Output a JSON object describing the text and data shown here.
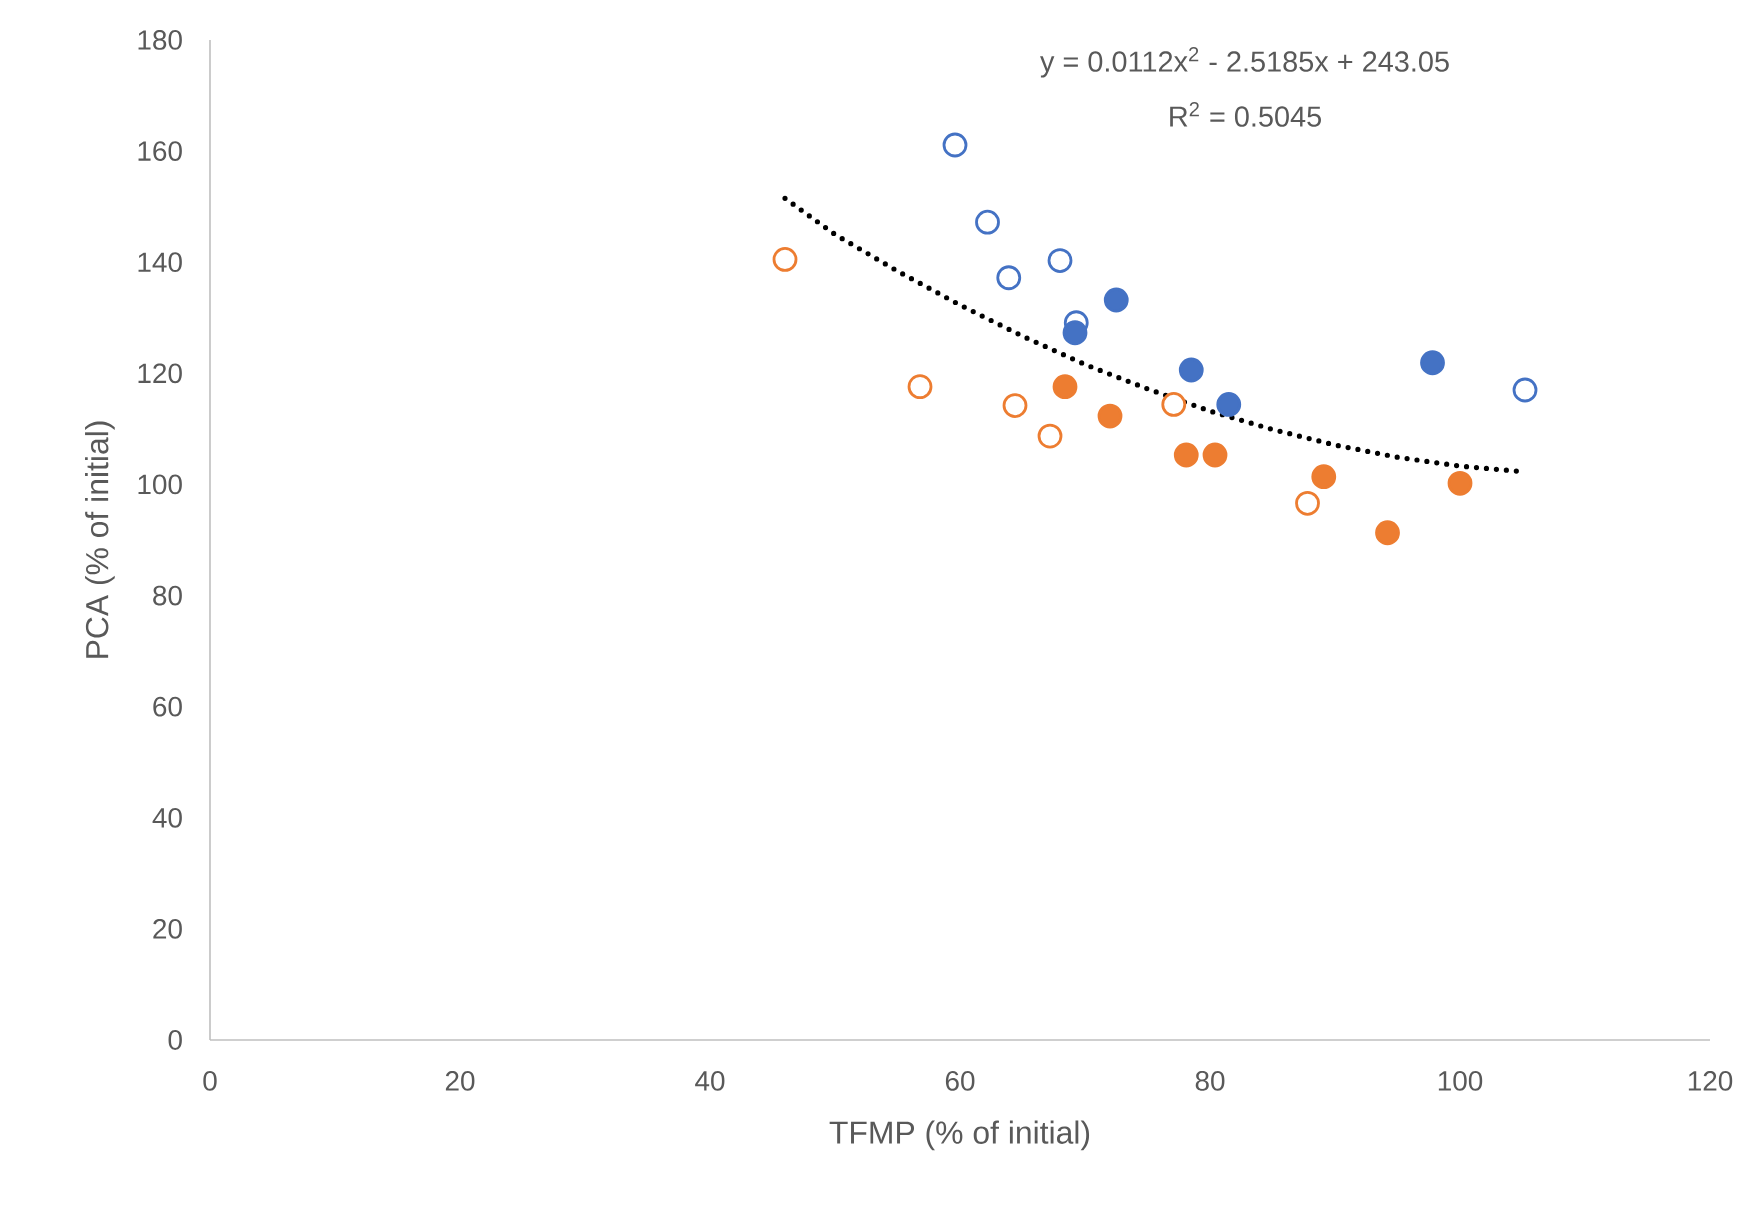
{
  "chart_data": {
    "type": "scatter",
    "xlabel": "TFMP (% of initial)",
    "ylabel": "PCA (% of initial)",
    "annotations": [
      "y = 0.0112x$^{2}$ - 2.5185x + 243.05",
      "R$^{2}$ = 0.5045"
    ],
    "xlim": [
      0,
      120
    ],
    "ylim": [
      0,
      180
    ],
    "xticks": [
      0,
      20,
      40,
      60,
      80,
      100,
      120
    ],
    "yticks": [
      0,
      20,
      40,
      60,
      80,
      100,
      120,
      140,
      160,
      180
    ],
    "marker": "circle",
    "series": [
      {
        "color": "#4472c4",
        "x": [
          59.6,
          62.2,
          63.9,
          68.0,
          69.3,
          105.2
        ],
        "values": [
          161.1,
          147.2,
          137.2,
          140.3,
          129.1,
          117.0
        ]
      },
      {
        "color": "#4472c4",
        "x": [
          69.2,
          72.5,
          78.5,
          81.5,
          97.8
        ],
        "values": [
          127.3,
          133.2,
          120.6,
          114.4,
          121.9
        ]
      },
      {
        "color": "#ed7d31",
        "x": [
          46.0,
          56.8,
          64.4,
          67.2,
          77.1,
          87.8
        ],
        "values": [
          140.5,
          117.6,
          114.2,
          108.7,
          114.4,
          96.6
        ]
      },
      {
        "color": "#ed7d31",
        "x": [
          68.4,
          72.0,
          78.1,
          80.4,
          89.1,
          94.2,
          100.0
        ],
        "values": [
          117.6,
          112.3,
          105.3,
          105.3,
          101.4,
          91.3,
          100.2
        ]
      },
      {
        "type": "line",
        "color": "#000000",
        "line_style": "dotted",
        "marker": "none",
        "x": [
          46,
          50,
          55,
          60,
          65,
          70,
          75,
          80,
          85,
          90,
          95,
          100,
          105
        ],
        "values": [
          151.5,
          145.0,
          138.4,
          132.3,
          126.7,
          121.6,
          117.2,
          113.2,
          109.9,
          107.1,
          104.9,
          103.3,
          102.3
        ]
      }
    ]
  }
}
